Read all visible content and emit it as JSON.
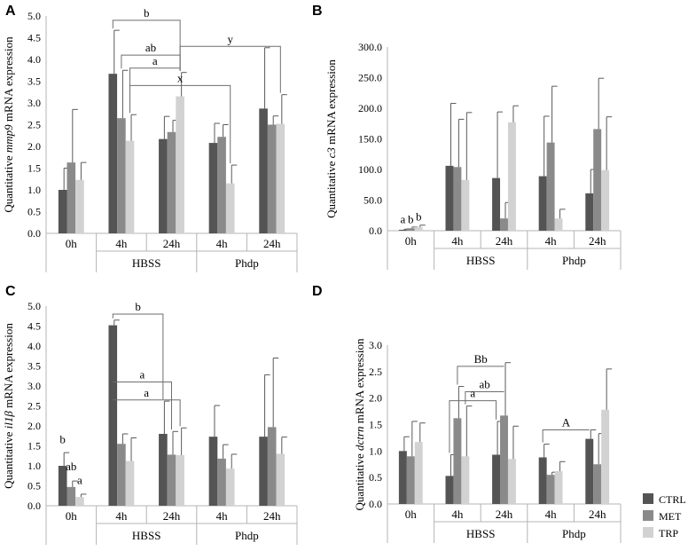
{
  "figure": {
    "legend": [
      {
        "name": "CTRL",
        "color": "#545454"
      },
      {
        "name": "MET",
        "color": "#8a8a8a"
      },
      {
        "name": "TRP",
        "color": "#d2d2d2"
      }
    ]
  },
  "chart_data": [
    {
      "panel": "A",
      "type": "bar",
      "ylabel_pre": "Quantitative ",
      "ylabel_gene": "mmp9",
      "ylabel_post": " mRNA expression",
      "ylim": [
        0,
        5
      ],
      "yticks": [
        "0.0",
        "0.5",
        "1.0",
        "1.5",
        "2.0",
        "2.5",
        "3.0",
        "3.5",
        "4.0",
        "4.5",
        "5.0"
      ],
      "categories": [
        "0h",
        "4h",
        "24h",
        "4h",
        "24h"
      ],
      "groups": [
        {
          "label": "HBSS",
          "span": [
            1,
            2
          ]
        },
        {
          "label": "Phdp",
          "span": [
            3,
            4
          ]
        }
      ],
      "series": [
        {
          "name": "CTRL",
          "values": [
            1.0,
            3.67,
            2.17,
            2.08,
            2.87
          ],
          "errors": [
            0.5,
            1.0,
            0.52,
            0.45,
            1.4
          ]
        },
        {
          "name": "MET",
          "values": [
            1.63,
            2.65,
            2.33,
            2.22,
            2.5
          ],
          "errors": [
            1.22,
            1.1,
            0.27,
            0.28,
            0.2
          ]
        },
        {
          "name": "TRP",
          "values": [
            1.23,
            2.13,
            3.15,
            1.15,
            2.52
          ],
          "errors": [
            0.4,
            0.6,
            0.55,
            0.42,
            0.67
          ]
        }
      ],
      "annotations": [
        {
          "text": "b",
          "from": [
            1,
            0
          ],
          "to": [
            2,
            2
          ],
          "y": 4.9
        },
        {
          "text": "ab",
          "from": [
            1,
            1
          ],
          "to": [
            2,
            2
          ],
          "y": 4.1
        },
        {
          "text": "a",
          "from": [
            1,
            2
          ],
          "to": [
            2,
            2
          ],
          "y": 3.8
        },
        {
          "text": "y",
          "from": [
            2,
            2
          ],
          "to": [
            4,
            2
          ],
          "y": 4.3
        },
        {
          "text": "x",
          "from": [
            1,
            2
          ],
          "to": [
            3,
            2
          ],
          "y": 3.4
        }
      ],
      "letters": []
    },
    {
      "panel": "B",
      "type": "bar",
      "ylabel_pre": "Quantitative ",
      "ylabel_gene": "c3",
      "ylabel_post": " mRNA expression",
      "ylim": [
        0,
        300
      ],
      "yticks": [
        "0.0",
        "50.0",
        "100.0",
        "150.0",
        "200.0",
        "250.0",
        "300.0"
      ],
      "categories": [
        "0h",
        "4h",
        "24h",
        "4h",
        "24h"
      ],
      "groups": [
        {
          "label": "HBSS",
          "span": [
            1,
            2
          ]
        },
        {
          "label": "Phdp",
          "span": [
            3,
            4
          ]
        }
      ],
      "series": [
        {
          "name": "CTRL",
          "values": [
            1.5,
            106,
            86,
            89,
            61
          ],
          "errors": [
            1,
            102,
            108,
            98,
            39
          ]
        },
        {
          "name": "MET",
          "values": [
            4,
            104,
            20,
            144,
            166
          ],
          "errors": [
            2,
            78,
            26,
            92,
            83
          ]
        },
        {
          "name": "TRP",
          "values": [
            6,
            83,
            177,
            20,
            99
          ],
          "errors": [
            3,
            110,
            27,
            15,
            87
          ]
        }
      ],
      "annotations": [],
      "letters": [
        {
          "text": "a",
          "cat": 0,
          "ser": 0,
          "y": 8
        },
        {
          "text": "b",
          "cat": 0,
          "ser": 1,
          "y": 8
        },
        {
          "text": "b",
          "cat": 0,
          "ser": 2,
          "y": 12
        }
      ]
    },
    {
      "panel": "C",
      "type": "bar",
      "ylabel_pre": "Quantitative ",
      "ylabel_gene": "il1β",
      "ylabel_post": " mRNA expression",
      "ylim": [
        0,
        5
      ],
      "yticks": [
        "0.0",
        "0.5",
        "1.0",
        "1.5",
        "2.0",
        "2.5",
        "3.0",
        "3.5",
        "4.0",
        "4.5",
        "5.0"
      ],
      "categories": [
        "0h",
        "4h",
        "24h",
        "4h",
        "24h"
      ],
      "groups": [
        {
          "label": "HBSS",
          "span": [
            1,
            2
          ]
        },
        {
          "label": "Phdp",
          "span": [
            3,
            4
          ]
        }
      ],
      "series": [
        {
          "name": "CTRL",
          "values": [
            1.0,
            4.52,
            1.8,
            1.73,
            1.73
          ],
          "errors": [
            0.33,
            0.13,
            0.82,
            0.78,
            1.55
          ]
        },
        {
          "name": "MET",
          "values": [
            0.47,
            1.55,
            1.28,
            1.18,
            1.97
          ],
          "errors": [
            0.15,
            0.25,
            0.58,
            0.35,
            1.73
          ]
        },
        {
          "name": "TRP",
          "values": [
            0.22,
            1.12,
            1.27,
            0.93,
            1.3
          ],
          "errors": [
            0.07,
            0.58,
            0.68,
            0.36,
            0.42
          ]
        }
      ],
      "annotations": [
        {
          "text": "b",
          "from": [
            1,
            0
          ],
          "to": [
            2,
            0
          ],
          "y": 4.8
        },
        {
          "text": "a",
          "from": [
            1,
            0
          ],
          "to": [
            2,
            1
          ],
          "y": 3.1
        },
        {
          "text": "a",
          "from": [
            1,
            0
          ],
          "to": [
            2,
            2
          ],
          "y": 2.65
        }
      ],
      "letters": [
        {
          "text": "b",
          "cat": 0,
          "ser": 0,
          "y": 1.5
        },
        {
          "text": "ab",
          "cat": 0,
          "ser": 1,
          "y": 0.82
        },
        {
          "text": "a",
          "cat": 0,
          "ser": 2,
          "y": 0.48
        }
      ]
    },
    {
      "panel": "D",
      "type": "bar",
      "ylabel_pre": "Quantitative ",
      "ylabel_gene": "dctrn",
      "ylabel_post": " mRNA expression",
      "ylim": [
        0,
        3
      ],
      "yticks": [
        "0.0",
        "0.5",
        "1.0",
        "1.5",
        "2.0",
        "2.5",
        "3.0"
      ],
      "categories": [
        "0h",
        "4h",
        "24h",
        "4h",
        "24h"
      ],
      "groups": [
        {
          "label": "HBSS",
          "span": [
            1,
            2
          ]
        },
        {
          "label": "Phdp",
          "span": [
            3,
            4
          ]
        }
      ],
      "series": [
        {
          "name": "CTRL",
          "values": [
            1.0,
            0.53,
            0.93,
            0.88,
            1.23
          ],
          "errors": [
            0.27,
            0.4,
            0.63,
            0.25,
            0.17
          ]
        },
        {
          "name": "MET",
          "values": [
            0.9,
            1.62,
            1.67,
            0.55,
            0.75
          ],
          "errors": [
            0.66,
            0.6,
            1.0,
            0.05,
            0.58
          ]
        },
        {
          "name": "TRP",
          "values": [
            1.17,
            0.9,
            0.85,
            0.62,
            1.78
          ],
          "errors": [
            0.36,
            0.95,
            0.62,
            0.18,
            0.77
          ]
        }
      ],
      "annotations": [
        {
          "text": "Bb",
          "from": [
            1,
            1
          ],
          "to": [
            2,
            1
          ],
          "y": 2.6
        },
        {
          "text": "ab",
          "from": [
            1,
            2
          ],
          "to": [
            2,
            1
          ],
          "y": 2.12
        },
        {
          "text": "a",
          "from": [
            1,
            0
          ],
          "to": [
            2,
            0
          ],
          "y": 1.95
        },
        {
          "text": "A",
          "from": [
            3,
            0
          ],
          "to": [
            4,
            0
          ],
          "y": 1.4
        }
      ],
      "letters": []
    }
  ]
}
